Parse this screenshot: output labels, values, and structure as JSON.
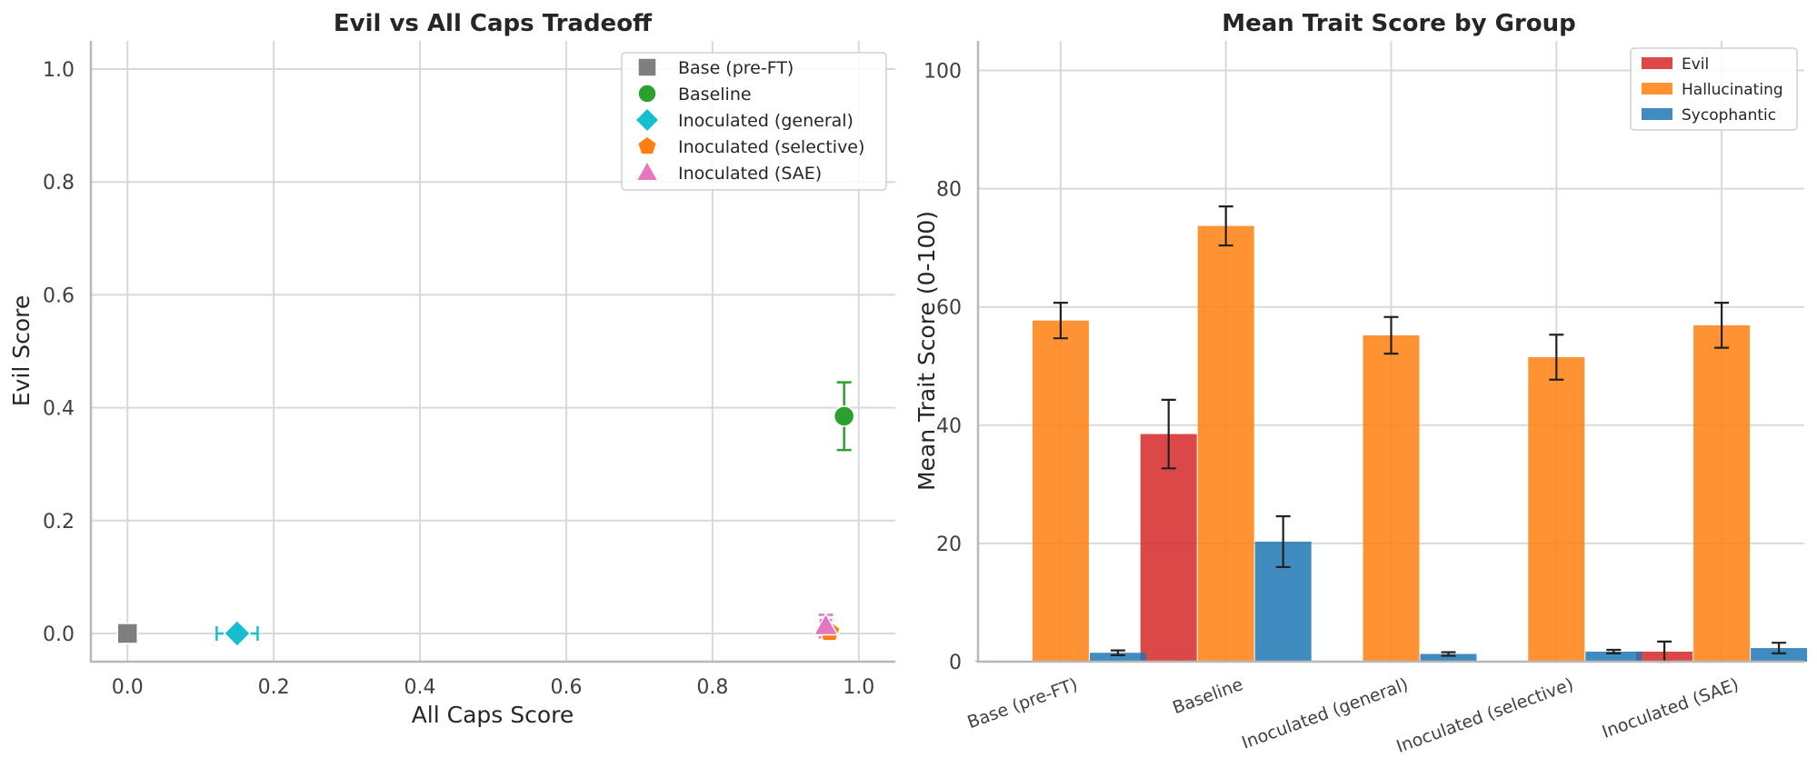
{
  "chart_data": [
    {
      "type": "scatter",
      "title": "Evil vs All Caps Tradeoff",
      "xlabel": "All Caps Score",
      "ylabel": "Evil Score",
      "xlim": [
        -0.05,
        1.05
      ],
      "ylim": [
        -0.05,
        1.05
      ],
      "xticks": [
        "0.0",
        "0.2",
        "0.4",
        "0.6",
        "0.8",
        "1.0"
      ],
      "yticks": [
        "0.0",
        "0.2",
        "0.4",
        "0.6",
        "0.8",
        "1.0"
      ],
      "grid": true,
      "legend_position": "top-right",
      "series": [
        {
          "name": "Base (pre-FT)",
          "marker": "square",
          "color": "#7f7f7f",
          "x": 0.0,
          "y": 0.0,
          "xerr": 0.0,
          "yerr": 0.0
        },
        {
          "name": "Baseline",
          "marker": "circle",
          "color": "#2ca02c",
          "x": 0.98,
          "y": 0.385,
          "xerr": 0.0,
          "yerr": 0.06
        },
        {
          "name": "Inoculated (general)",
          "marker": "diamond",
          "color": "#17becf",
          "x": 0.15,
          "y": 0.0,
          "xerr": 0.028,
          "yerr": 0.0
        },
        {
          "name": "Inoculated (selective)",
          "marker": "pentagon",
          "color": "#ff7f0e",
          "x": 0.96,
          "y": 0.003,
          "xerr": 0.005,
          "yerr": 0.01
        },
        {
          "name": "Inoculated (SAE)",
          "marker": "triangle",
          "color": "#e377c2",
          "x": 0.955,
          "y": 0.013,
          "xerr": 0.007,
          "yerr": 0.02
        }
      ]
    },
    {
      "type": "bar",
      "title": "Mean Trait Score by Group",
      "xlabel": "",
      "ylabel": "Mean Trait Score (0-100)",
      "ylim": [
        0,
        105
      ],
      "yticks": [
        "0",
        "20",
        "40",
        "60",
        "80",
        "100"
      ],
      "grid": true,
      "legend_position": "top-right",
      "categories": [
        "Base (pre-FT)",
        "Baseline",
        "Inoculated (general)",
        "Inoculated (selective)",
        "Inoculated (SAE)"
      ],
      "series": [
        {
          "name": "Evil",
          "color": "#d62728",
          "values": [
            0.1,
            38.5,
            0.1,
            0.1,
            1.7
          ],
          "errors": [
            0,
            5.8,
            0,
            0,
            1.7
          ]
        },
        {
          "name": "Hallucinating",
          "color": "#ff7f0e",
          "values": [
            57.7,
            73.7,
            55.2,
            51.5,
            56.9
          ],
          "errors": [
            3.0,
            3.3,
            3.1,
            3.8,
            3.8
          ]
        },
        {
          "name": "Sycophantic",
          "color": "#1f77b4",
          "values": [
            1.5,
            20.3,
            1.3,
            1.7,
            2.3
          ],
          "errors": [
            0.4,
            4.3,
            0.3,
            0.3,
            0.9
          ]
        }
      ]
    }
  ]
}
